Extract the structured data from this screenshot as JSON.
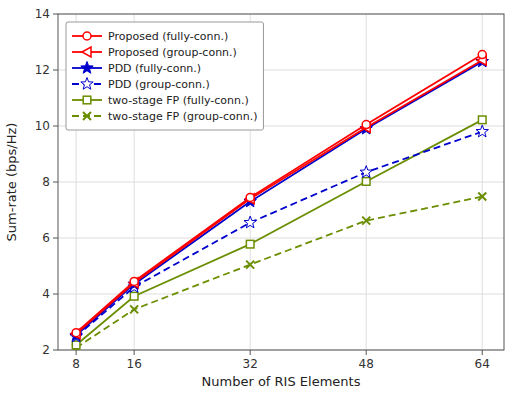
{
  "chart_data": {
    "type": "line",
    "x": [
      8,
      16,
      32,
      48,
      64
    ],
    "series": [
      {
        "name": "Proposed (fully-conn.)",
        "color": "#FF0000",
        "marker": "circle-open",
        "line_style": "solid",
        "values": [
          2.62,
          4.45,
          7.45,
          10.05,
          12.55
        ]
      },
      {
        "name": "Proposed (group-conn.)",
        "color": "#FF0000",
        "marker": "triangle-left-open",
        "line_style": "solid",
        "values": [
          2.58,
          4.4,
          7.4,
          9.95,
          12.35
        ]
      },
      {
        "name": "PDD (fully-conn.)",
        "color": "#0000CD",
        "marker": "star",
        "line_style": "solid",
        "values": [
          2.52,
          4.35,
          7.3,
          9.9,
          12.3
        ]
      },
      {
        "name": "PDD (group-conn.)",
        "color": "#0000CD",
        "marker": "star-open",
        "line_style": "dashed",
        "values": [
          2.48,
          4.25,
          6.55,
          8.35,
          9.8
        ]
      },
      {
        "name": "two-stage FP (fully-conn.)",
        "color": "#6B8E00",
        "marker": "square-open",
        "line_style": "solid",
        "values": [
          2.18,
          3.92,
          5.78,
          8.02,
          10.22
        ]
      },
      {
        "name": "two-stage FP (group-conn.)",
        "color": "#6B8E00",
        "marker": "x",
        "line_style": "dashed",
        "values": [
          2.08,
          3.45,
          5.05,
          6.62,
          7.48
        ]
      }
    ],
    "xlabel": "Number of RIS Elements",
    "ylabel": "Sum-rate (bps/Hz)",
    "xlim": [
      5.5,
      67
    ],
    "ylim": [
      2,
      14
    ],
    "xticks": [
      8,
      16,
      32,
      48,
      64
    ],
    "yticks": [
      2,
      4,
      6,
      8,
      10,
      12,
      14
    ],
    "grid": true,
    "legend": "upper left"
  }
}
